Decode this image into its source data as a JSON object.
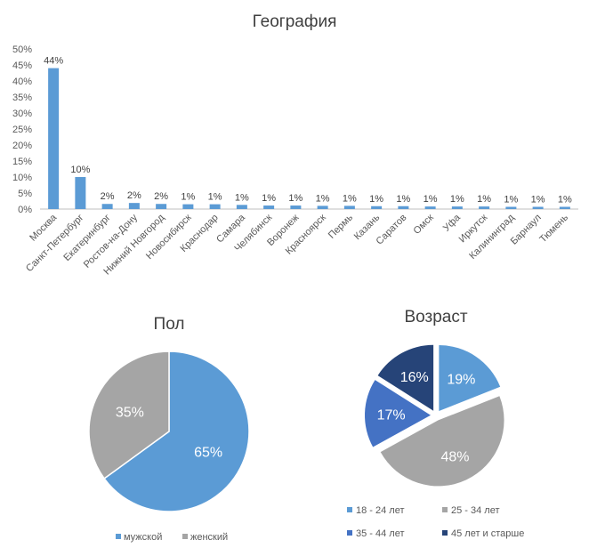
{
  "colors": {
    "bar": "#5b9bd5",
    "axis": "#bfbfbf",
    "male": "#5b9bd5",
    "female": "#a5a5a5",
    "age_18_24": "#5b9bd5",
    "age_25_34": "#a5a5a5",
    "age_35_44": "#4472c4",
    "age_45_plus": "#264478"
  },
  "chart_data": [
    {
      "type": "bar",
      "title": "География",
      "categories": [
        "Москва",
        "Санкт-Петербург",
        "Екатеринбург",
        "Ростов-на-Дону",
        "Нижний Новгород",
        "Новосибирск",
        "Краснодар",
        "Самара",
        "Челябинск",
        "Воронеж",
        "Красноярск",
        "Пермь",
        "Казань",
        "Саратов",
        "Омск",
        "Уфа",
        "Иркутск",
        "Калининград",
        "Барнаул",
        "Тюмень"
      ],
      "values": [
        44,
        10,
        1.6,
        1.9,
        1.6,
        1.5,
        1.5,
        1.3,
        1.1,
        1.1,
        1.0,
        1.0,
        0.9,
        0.9,
        0.8,
        0.8,
        0.8,
        0.7,
        0.7,
        0.7
      ],
      "data_labels": [
        "44%",
        "10%",
        "2%",
        "2%",
        "2%",
        "1%",
        "1%",
        "1%",
        "1%",
        "1%",
        "1%",
        "1%",
        "1%",
        "1%",
        "1%",
        "1%",
        "1%",
        "1%",
        "1%",
        "1%"
      ],
      "ylim": [
        0,
        50
      ],
      "yticks": [
        "0%",
        "5%",
        "10%",
        "15%",
        "20%",
        "25%",
        "30%",
        "35%",
        "40%",
        "45%",
        "50%"
      ],
      "grid": false
    },
    {
      "type": "pie",
      "title": "Пол",
      "labels": [
        "мужской",
        "женский"
      ],
      "values": [
        65,
        35
      ],
      "data_labels": [
        "65%",
        "35%"
      ],
      "legend": "bottom"
    },
    {
      "type": "pie",
      "title": "Возраст",
      "labels": [
        "18 - 24 лет",
        "25 - 34 лет",
        "35 - 44 лет",
        "45 лет и старше"
      ],
      "values": [
        19,
        48,
        17,
        16
      ],
      "data_labels": [
        "19%",
        "48%",
        "17%",
        "16%"
      ],
      "legend": "bottom"
    }
  ]
}
